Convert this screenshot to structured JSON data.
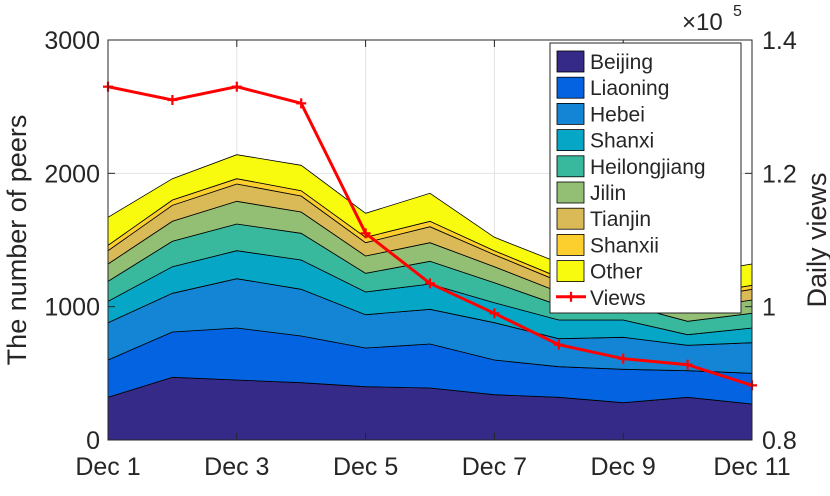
{
  "chart_data": {
    "type": "area",
    "stacked": true,
    "title": "",
    "xlabel": "",
    "ylabel": "The number of peers",
    "y2label": "Daily views",
    "y2_exponent_label": "×10",
    "y2_exponent_power": "5",
    "x": [
      1,
      2,
      3,
      4,
      5,
      6,
      7,
      8,
      9,
      10,
      11
    ],
    "xticks": [
      1,
      3,
      5,
      7,
      9,
      11
    ],
    "xtick_labels": [
      "Dec 1",
      "Dec 3",
      "Dec 5",
      "Dec 7",
      "Dec 9",
      "Dec 11"
    ],
    "xlim": [
      1,
      11
    ],
    "ylim": [
      0,
      3000
    ],
    "yticks": [
      0,
      1000,
      2000,
      3000
    ],
    "ytick_labels": [
      "0",
      "1000",
      "2000",
      "3000"
    ],
    "y2lim": [
      0.8,
      1.4
    ],
    "y2ticks": [
      0.8,
      1.0,
      1.2,
      1.4
    ],
    "y2tick_labels": [
      "0.8",
      "1",
      "1.2",
      "1.4"
    ],
    "grid": true,
    "legend_position": "top-right",
    "series": [
      {
        "name": "Beijing",
        "color": "#352A87",
        "values": [
          320,
          470,
          450,
          430,
          400,
          390,
          340,
          320,
          280,
          320,
          270
        ]
      },
      {
        "name": "Liaoning",
        "color": "#0363E1",
        "values": [
          280,
          340,
          390,
          350,
          290,
          330,
          260,
          230,
          250,
          200,
          230
        ]
      },
      {
        "name": "Hebei",
        "color": "#1485D4",
        "values": [
          280,
          290,
          370,
          350,
          250,
          260,
          280,
          210,
          240,
          190,
          230
        ]
      },
      {
        "name": "Shanxi",
        "color": "#06A7C6",
        "values": [
          160,
          200,
          210,
          220,
          170,
          190,
          150,
          140,
          130,
          80,
          110
        ]
      },
      {
        "name": "Heilongjiang",
        "color": "#38B99E",
        "values": [
          150,
          190,
          200,
          200,
          140,
          170,
          150,
          110,
          120,
          100,
          110
        ]
      },
      {
        "name": "Jilin",
        "color": "#92BF73",
        "values": [
          130,
          150,
          170,
          160,
          130,
          140,
          120,
          100,
          110,
          90,
          100
        ]
      },
      {
        "name": "Tianjin",
        "color": "#D9BA56",
        "values": [
          100,
          120,
          130,
          120,
          100,
          120,
          90,
          80,
          80,
          70,
          80
        ]
      },
      {
        "name": "Shanxii",
        "color": "#FCCE2E",
        "values": [
          40,
          40,
          40,
          40,
          40,
          40,
          30,
          30,
          30,
          30,
          30
        ]
      },
      {
        "name": "Other",
        "color": "#F9FB0E",
        "values": [
          210,
          160,
          180,
          190,
          180,
          210,
          100,
          110,
          120,
          160,
          160
        ]
      }
    ],
    "line_series": {
      "name": "Views",
      "color": "#FF0000",
      "axis": "right",
      "values": [
        1.33,
        1.31,
        1.33,
        1.305,
        1.11,
        1.035,
        0.99,
        0.943,
        0.922,
        0.913,
        0.882
      ]
    }
  }
}
